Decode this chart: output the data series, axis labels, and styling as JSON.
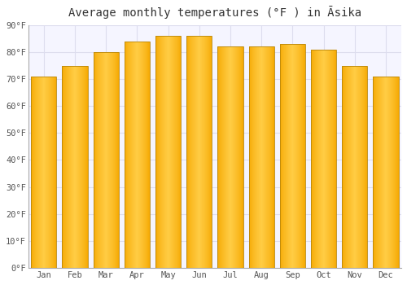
{
  "title": "Average monthly temperatures (°F ) in Āsika",
  "months": [
    "Jan",
    "Feb",
    "Mar",
    "Apr",
    "May",
    "Jun",
    "Jul",
    "Aug",
    "Sep",
    "Oct",
    "Nov",
    "Dec"
  ],
  "values": [
    71,
    75,
    80,
    84,
    86,
    86,
    82,
    82,
    83,
    81,
    75,
    71
  ],
  "bar_color_center": "#FFCC44",
  "bar_color_edge": "#F5A800",
  "bar_border_color": "#B8860B",
  "background_color": "#ffffff",
  "plot_bg_color": "#f5f5ff",
  "ylim": [
    0,
    90
  ],
  "yticks": [
    0,
    10,
    20,
    30,
    40,
    50,
    60,
    70,
    80,
    90
  ],
  "ytick_labels": [
    "0°F",
    "10°F",
    "20°F",
    "30°F",
    "40°F",
    "50°F",
    "60°F",
    "70°F",
    "80°F",
    "90°F"
  ],
  "title_fontsize": 10,
  "tick_fontsize": 7.5,
  "grid_color": "#ddddee",
  "bar_width": 0.82
}
